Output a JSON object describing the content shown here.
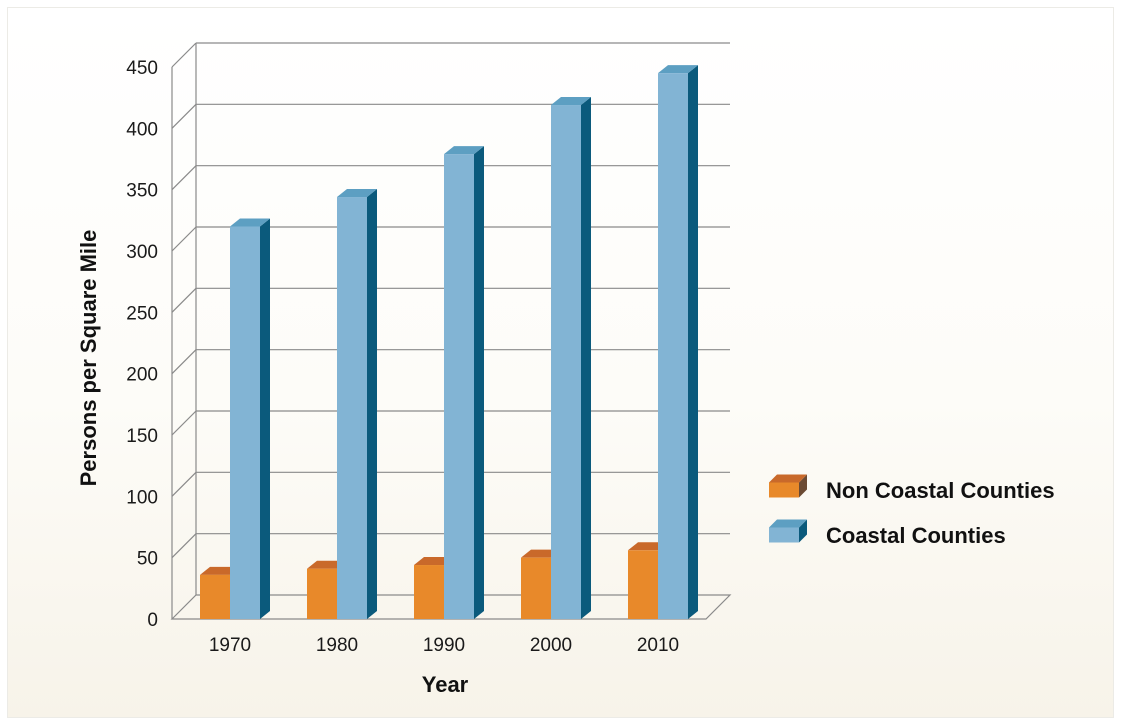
{
  "chart_data": {
    "type": "bar",
    "categories": [
      "1970",
      "1980",
      "1990",
      "2000",
      "2010"
    ],
    "series": [
      {
        "name": "Non Coastal Counties",
        "values": [
          36,
          41,
          44,
          50,
          56
        ],
        "color": "#e8892a",
        "top_color": "#c9692a",
        "side_color": "#6b4a33"
      },
      {
        "name": "Coastal Counties",
        "values": [
          320,
          344,
          379,
          419,
          445
        ],
        "color": "#82b4d4",
        "top_color": "#5d9fc2",
        "side_color": "#0b5a7c"
      }
    ],
    "title": "",
    "xlabel": "Year",
    "ylabel": "Persons per Square Mile",
    "ylim": [
      0,
      450
    ],
    "yticks": [
      "0",
      "50",
      "100",
      "150",
      "200",
      "250",
      "300",
      "350",
      "400",
      "450"
    ],
    "grid": true,
    "legend_position": "right"
  }
}
